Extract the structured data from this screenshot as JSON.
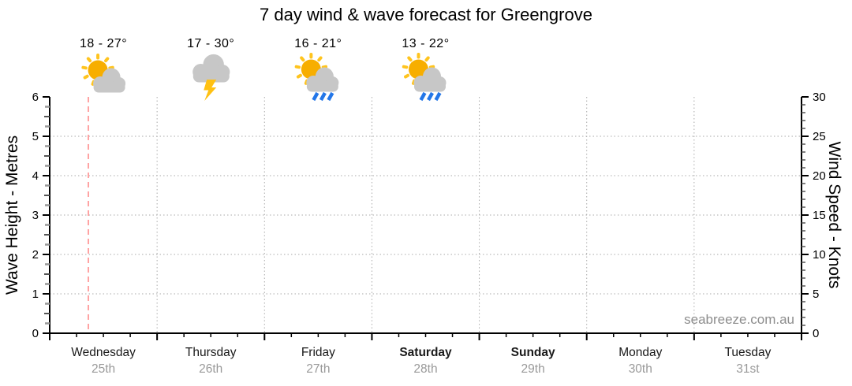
{
  "title": "7 day wind & wave forecast for Greengrove",
  "watermark": "seabreeze.com.au",
  "chart_data": {
    "type": "line",
    "title": "7 day wind & wave forecast for Greengrove",
    "x_categories": [
      {
        "day": "Wednesday",
        "date": "25th",
        "weekend": false
      },
      {
        "day": "Thursday",
        "date": "26th",
        "weekend": false
      },
      {
        "day": "Friday",
        "date": "27th",
        "weekend": false
      },
      {
        "day": "Saturday",
        "date": "28th",
        "weekend": true
      },
      {
        "day": "Sunday",
        "date": "29th",
        "weekend": true
      },
      {
        "day": "Monday",
        "date": "30th",
        "weekend": false
      },
      {
        "day": "Tuesday",
        "date": "31st",
        "weekend": false
      }
    ],
    "y_left": {
      "label": "Wave Height - Metres",
      "min": 0,
      "max": 6,
      "ticks": [
        0,
        1,
        2,
        3,
        4,
        5,
        6
      ],
      "minor_step": 0.25
    },
    "y_right": {
      "label": "Wind Speed - Knots",
      "min": 0,
      "max": 30,
      "ticks": [
        0,
        5,
        10,
        15,
        20,
        25,
        30
      ],
      "minor_step": 1
    },
    "series": [],
    "grid": {
      "horizontal_at_metres": [
        1,
        2,
        3,
        4,
        5
      ],
      "vertical_at_day_boundaries": [
        1,
        2,
        3,
        4,
        5,
        6
      ],
      "style": "dotted"
    },
    "now_marker": {
      "day_index": 0,
      "day_fraction": 0.36,
      "style": "dashed"
    },
    "annotations": [
      {
        "day_index": 0,
        "temps": "18 - 27°",
        "icon": "partly-cloudy-icon"
      },
      {
        "day_index": 1,
        "temps": "17 - 30°",
        "icon": "thunderstorm-icon"
      },
      {
        "day_index": 2,
        "temps": "16 - 21°",
        "icon": "sun-showers-icon"
      },
      {
        "day_index": 3,
        "temps": "13 - 22°",
        "icon": "sun-showers-icon"
      }
    ],
    "legend": "none"
  },
  "colors": {
    "sun": "#F7AE00",
    "sun_rays": "#FFC41E",
    "cloud": "#C7C7C7",
    "lightning": "#FFC112",
    "rain": "#2376E8",
    "grid": "#AAAAAA",
    "axis": "#000000",
    "minor_tick": "#555555",
    "sub_tick": "#999999",
    "now_line": "#FFA3A3",
    "date_text": "#999999",
    "watermark_text": "#8D8D8D"
  }
}
